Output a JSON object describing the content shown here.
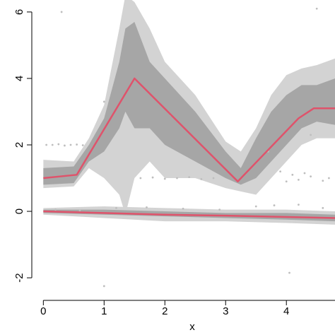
{
  "chart_data": {
    "type": "band",
    "xlabel": "x",
    "xlim": [
      -0.19,
      4.8
    ],
    "ylim": [
      -2.36,
      6.36
    ],
    "xticks": [
      0,
      1,
      2,
      3,
      4
    ],
    "yticks": [
      -2,
      0,
      2,
      4,
      6
    ],
    "bands": [
      {
        "color": "#d3d3d3",
        "x": [
          0,
          0.5,
          0.75,
          1.0,
          1.25,
          1.35,
          1.5,
          1.75,
          2.0,
          2.5,
          3.0,
          3.25,
          3.5,
          3.75,
          4.0,
          4.25,
          4.5,
          4.8
        ],
        "lower": [
          0.7,
          0.75,
          1.3,
          1.0,
          0.5,
          -0.1,
          1.0,
          1.5,
          1.0,
          1.0,
          0.7,
          0.6,
          0.5,
          1.0,
          1.5,
          2.0,
          2.2,
          2.2
        ],
        "upper": [
          1.55,
          1.5,
          2.2,
          3.2,
          5.5,
          6.5,
          6.3,
          5.5,
          4.5,
          3.5,
          2.1,
          1.8,
          2.5,
          3.5,
          4.1,
          4.3,
          4.4,
          4.6
        ]
      },
      {
        "color": "#a6a6a6",
        "x": [
          0,
          0.5,
          0.75,
          1.0,
          1.25,
          1.35,
          1.5,
          1.75,
          2.0,
          2.5,
          3.0,
          3.25,
          3.5,
          3.75,
          4.0,
          4.25,
          4.5,
          4.8
        ],
        "lower": [
          0.8,
          0.85,
          1.5,
          1.8,
          2.5,
          3.0,
          2.5,
          2.5,
          2.0,
          1.5,
          1.0,
          0.8,
          1.0,
          1.5,
          2.0,
          2.5,
          2.7,
          2.6
        ],
        "upper": [
          1.3,
          1.35,
          2.0,
          2.8,
          4.5,
          5.5,
          5.7,
          4.5,
          4.0,
          3.0,
          1.8,
          1.3,
          2.2,
          3.0,
          3.5,
          3.8,
          3.8,
          4.0
        ]
      },
      {
        "color": "#d3d3d3",
        "x": [
          0,
          1,
          2,
          3,
          4,
          4.8
        ],
        "lower": [
          -0.1,
          -0.2,
          -0.3,
          -0.3,
          -0.35,
          -0.4
        ],
        "upper": [
          0.1,
          0.15,
          0.1,
          0.05,
          0.05,
          0.0
        ]
      },
      {
        "color": "#a6a6a6",
        "x": [
          0,
          1,
          2,
          3,
          4,
          4.8
        ],
        "lower": [
          -0.05,
          -0.1,
          -0.15,
          -0.2,
          -0.25,
          -0.3
        ],
        "upper": [
          0.05,
          0.05,
          0.0,
          -0.05,
          -0.05,
          -0.1
        ]
      }
    ],
    "points": {
      "color": "#bebebe",
      "x": [
        0.3,
        4.5,
        4.05,
        1.0,
        0.05,
        0.15,
        0.25,
        0.35,
        0.45,
        0.55,
        0.65,
        1.6,
        1.8,
        2.0,
        2.2,
        2.4,
        2.6,
        2.8,
        3.9,
        4.0,
        4.1,
        4.2,
        4.3,
        4.4,
        4.6,
        4.7,
        0.2,
        0.6,
        1.2,
        1.7,
        2.3,
        2.9,
        3.5,
        3.8,
        4.2,
        4.6,
        1.0,
        2.1,
        3.7,
        4.4
      ],
      "y": [
        6.0,
        6.1,
        -1.85,
        -2.25,
        2.0,
        2.0,
        2.02,
        1.98,
        2.0,
        2.01,
        1.99,
        1.0,
        1.02,
        0.98,
        1.0,
        1.03,
        0.97,
        1.0,
        1.2,
        0.9,
        1.1,
        0.95,
        1.15,
        1.05,
        0.92,
        1.0,
        0.05,
        0.02,
        0.1,
        0.12,
        0.08,
        0.05,
        0.15,
        0.18,
        0.2,
        0.1,
        3.3,
        2.9,
        1.8,
        2.3
      ]
    },
    "lines": [
      {
        "color": "#df536b",
        "x": [
          0,
          0.55,
          1.5,
          3.2,
          4.2,
          4.45,
          4.8
        ],
        "values": [
          1.0,
          1.1,
          4.0,
          0.9,
          2.8,
          3.1,
          3.1
        ]
      },
      {
        "color": "#df536b",
        "x": [
          0,
          1,
          2,
          3,
          4,
          4.8
        ],
        "values": [
          0.0,
          -0.05,
          -0.1,
          -0.13,
          -0.17,
          -0.2
        ]
      }
    ]
  }
}
